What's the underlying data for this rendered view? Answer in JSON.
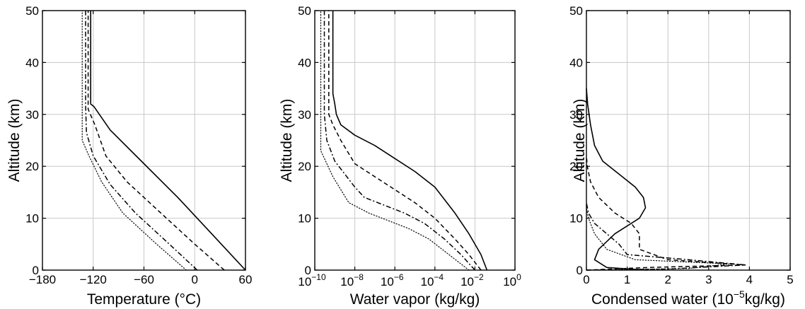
{
  "chart_data": [
    {
      "type": "line",
      "xlabel": "Temperature (°C)",
      "ylabel": "Altitude (km)",
      "xlim": [
        -180,
        60
      ],
      "ylim": [
        0,
        50
      ],
      "x_scale": "linear",
      "xticks": [
        -180,
        -120,
        -60,
        0,
        60
      ],
      "xtick_labels": [
        "−180",
        "−120",
        "−60",
        "0",
        "60"
      ],
      "yticks": [
        0,
        10,
        20,
        30,
        40,
        50
      ],
      "ytick_labels": [
        "0",
        "10",
        "20",
        "30",
        "40",
        "50"
      ],
      "grid": true,
      "series": [
        {
          "line_style": "solid",
          "points": [
            [
              60,
              0
            ],
            [
              20,
              7
            ],
            [
              -20,
              14
            ],
            [
              -60,
              20.5
            ],
            [
              -100,
              27
            ],
            [
              -119,
              31.5
            ],
            [
              -123,
              32
            ],
            [
              -123,
              50
            ]
          ]
        },
        {
          "line_style": "dashed",
          "points": [
            [
              35,
              0
            ],
            [
              0,
              5
            ],
            [
              -40,
              11
            ],
            [
              -80,
              17
            ],
            [
              -105,
              22
            ],
            [
              -118,
              28
            ],
            [
              -126,
              31
            ],
            [
              -126,
              50
            ]
          ]
        },
        {
          "line_style": "dashdot",
          "points": [
            [
              3,
              0
            ],
            [
              -30,
              5
            ],
            [
              -70,
              11
            ],
            [
              -100,
              16.5
            ],
            [
              -120,
              22
            ],
            [
              -128,
              26.5
            ],
            [
              -129,
              32
            ],
            [
              -129,
              50
            ]
          ]
        },
        {
          "line_style": "dotted",
          "points": [
            [
              -10,
              0
            ],
            [
              -45,
              5
            ],
            [
              -85,
              11
            ],
            [
              -110,
              17
            ],
            [
              -125,
              22
            ],
            [
              -133,
              25
            ],
            [
              -133,
              50
            ]
          ]
        }
      ]
    },
    {
      "type": "line",
      "xlabel": "Water vapor (kg/kg)",
      "ylabel": "Altitude (km)",
      "xlim": [
        1e-10,
        1
      ],
      "ylim": [
        0,
        50
      ],
      "x_scale": "log",
      "xticks": [
        1e-10,
        1e-08,
        1e-06,
        0.0001,
        0.01,
        1
      ],
      "xtick_labels": [
        {
          "base": "10",
          "exp": "−10"
        },
        {
          "base": "10",
          "exp": "−8"
        },
        {
          "base": "10",
          "exp": "−6"
        },
        {
          "base": "10",
          "exp": "−4"
        },
        {
          "base": "10",
          "exp": "−2"
        },
        {
          "base": "10",
          "exp": "0"
        }
      ],
      "yticks": [
        0,
        10,
        20,
        30,
        40,
        50
      ],
      "ytick_labels": [
        "0",
        "10",
        "20",
        "30",
        "40",
        "50"
      ],
      "grid": true,
      "series": [
        {
          "line_style": "solid",
          "points": [
            [
              0.04,
              0
            ],
            [
              0.02,
              3
            ],
            [
              0.005,
              7
            ],
            [
              0.001,
              11
            ],
            [
              0.0001,
              16
            ],
            [
              1e-05,
              19
            ],
            [
              1e-06,
              21.5
            ],
            [
              1e-07,
              24
            ],
            [
              1e-08,
              26
            ],
            [
              2e-09,
              28
            ],
            [
              1.2e-09,
              30
            ],
            [
              1e-09,
              32
            ],
            [
              8e-10,
              34
            ],
            [
              8e-10,
              50
            ]
          ]
        },
        {
          "line_style": "dashed",
          "points": [
            [
              0.02,
              0
            ],
            [
              0.005,
              3
            ],
            [
              0.001,
              6
            ],
            [
              0.0001,
              10
            ],
            [
              1e-05,
              13
            ],
            [
              1e-06,
              15.5
            ],
            [
              1e-07,
              18
            ],
            [
              1e-08,
              20.5
            ],
            [
              2e-09,
              25
            ],
            [
              8e-10,
              28
            ],
            [
              5e-10,
              30
            ],
            [
              5e-10,
              50
            ]
          ]
        },
        {
          "line_style": "dashdot",
          "points": [
            [
              0.01,
              0
            ],
            [
              0.002,
              3
            ],
            [
              0.0003,
              6
            ],
            [
              3e-05,
              9
            ],
            [
              3e-06,
              11
            ],
            [
              3e-07,
              12.5
            ],
            [
              3e-08,
              14
            ],
            [
              1e-08,
              16
            ],
            [
              1e-09,
              21
            ],
            [
              4e-10,
              25
            ],
            [
              3e-10,
              30
            ],
            [
              3e-10,
              50
            ]
          ]
        },
        {
          "line_style": "dotted",
          "points": [
            [
              0.005,
              0
            ],
            [
              0.0005,
              3
            ],
            [
              5e-05,
              6
            ],
            [
              5e-06,
              8
            ],
            [
              5e-07,
              9.5
            ],
            [
              5e-08,
              11
            ],
            [
              5e-09,
              13
            ],
            [
              8e-10,
              18
            ],
            [
              2e-10,
              23
            ],
            [
              2e-10,
              50
            ]
          ]
        }
      ]
    },
    {
      "type": "line",
      "xlabel": "Condensed water (10",
      "xlabel_exp": "−5",
      "xlabel_suffix": "kg/kg)",
      "ylabel": "Altitude (km)",
      "xlim": [
        0,
        5
      ],
      "ylim": [
        0,
        50
      ],
      "x_scale": "linear",
      "xticks": [
        0,
        1,
        2,
        3,
        4,
        5
      ],
      "xtick_labels": [
        "0",
        "1",
        "2",
        "3",
        "4",
        "5"
      ],
      "yticks": [
        0,
        10,
        20,
        30,
        40,
        50
      ],
      "ytick_labels": [
        "0",
        "10",
        "20",
        "30",
        "40",
        "50"
      ],
      "grid": true,
      "series": [
        {
          "line_style": "solid",
          "points": [
            [
              1.5,
              0
            ],
            [
              0.5,
              0.5
            ],
            [
              0.2,
              2
            ],
            [
              0.3,
              4
            ],
            [
              0.7,
              7
            ],
            [
              1.0,
              8.5
            ],
            [
              1.3,
              10
            ],
            [
              1.45,
              12
            ],
            [
              1.4,
              14
            ],
            [
              1.2,
              16
            ],
            [
              0.8,
              18.5
            ],
            [
              0.4,
              21
            ],
            [
              0.2,
              24
            ],
            [
              0.1,
              28
            ],
            [
              0.03,
              32
            ],
            [
              0,
              35
            ]
          ]
        },
        {
          "line_style": "dashed",
          "points": [
            [
              0,
              0
            ],
            [
              1.5,
              0.5
            ],
            [
              3.9,
              1
            ],
            [
              2.0,
              2
            ],
            [
              1.3,
              4
            ],
            [
              1.3,
              7
            ],
            [
              1.1,
              9
            ],
            [
              0.7,
              11
            ],
            [
              0.3,
              14
            ],
            [
              0.1,
              17
            ],
            [
              0.02,
              20
            ],
            [
              0,
              22
            ]
          ]
        },
        {
          "line_style": "dashdot",
          "points": [
            [
              0,
              0
            ],
            [
              2.0,
              0.2
            ],
            [
              3.9,
              1
            ],
            [
              2.5,
              2
            ],
            [
              1.0,
              3
            ],
            [
              0.8,
              5
            ],
            [
              0.5,
              7
            ],
            [
              0.2,
              9
            ],
            [
              0.05,
              11
            ],
            [
              0,
              13
            ]
          ]
        },
        {
          "line_style": "dotted",
          "points": [
            [
              0,
              0
            ],
            [
              2.5,
              0.3
            ],
            [
              3.5,
              1.2
            ],
            [
              1.2,
              2
            ],
            [
              0.5,
              4
            ],
            [
              0.2,
              7
            ],
            [
              0.05,
              10
            ],
            [
              0,
              12
            ]
          ]
        }
      ]
    }
  ]
}
